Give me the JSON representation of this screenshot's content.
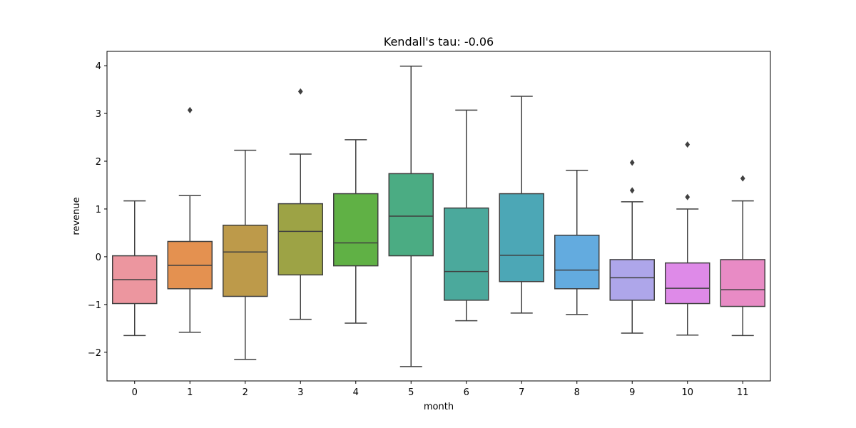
{
  "chart_data": {
    "type": "box",
    "title": "Kendall's tau: -0.06",
    "xlabel": "month",
    "ylabel": "revenue",
    "ylim": [
      -2.6,
      4.3
    ],
    "yticks": [
      -2,
      -1,
      0,
      1,
      2,
      3,
      4
    ],
    "ytick_labels": [
      "−2",
      "−1",
      "0",
      "1",
      "2",
      "3",
      "4"
    ],
    "categories": [
      "0",
      "1",
      "2",
      "3",
      "4",
      "5",
      "6",
      "7",
      "8",
      "9",
      "10",
      "11"
    ],
    "boxes": [
      {
        "category": "0",
        "color": "#ec969f",
        "whisker_low": -1.65,
        "q1": -0.98,
        "median": -0.48,
        "q3": 0.02,
        "whisker_high": 1.17,
        "outliers": []
      },
      {
        "category": "1",
        "color": "#e49150",
        "whisker_low": -1.58,
        "q1": -0.67,
        "median": -0.18,
        "q3": 0.32,
        "whisker_high": 1.28,
        "outliers": [
          3.07
        ]
      },
      {
        "category": "2",
        "color": "#bd9a4a",
        "whisker_low": -2.15,
        "q1": -0.83,
        "median": 0.1,
        "q3": 0.66,
        "whisker_high": 2.23,
        "outliers": []
      },
      {
        "category": "3",
        "color": "#9da345",
        "whisker_low": -1.31,
        "q1": -0.38,
        "median": 0.53,
        "q3": 1.11,
        "whisker_high": 2.15,
        "outliers": [
          3.46
        ]
      },
      {
        "category": "4",
        "color": "#60b145",
        "whisker_low": -1.39,
        "q1": -0.19,
        "median": 0.29,
        "q3": 1.32,
        "whisker_high": 2.45,
        "outliers": []
      },
      {
        "category": "5",
        "color": "#4bac83",
        "whisker_low": -2.3,
        "q1": 0.02,
        "median": 0.85,
        "q3": 1.74,
        "whisker_high": 3.99,
        "outliers": []
      },
      {
        "category": "6",
        "color": "#4ba99c",
        "whisker_low": -1.34,
        "q1": -0.91,
        "median": -0.31,
        "q3": 1.02,
        "whisker_high": 3.07,
        "outliers": []
      },
      {
        "category": "7",
        "color": "#4ca7b6",
        "whisker_low": -1.18,
        "q1": -0.52,
        "median": 0.03,
        "q3": 1.32,
        "whisker_high": 3.36,
        "outliers": []
      },
      {
        "category": "8",
        "color": "#63abdf",
        "whisker_low": -1.21,
        "q1": -0.67,
        "median": -0.28,
        "q3": 0.45,
        "whisker_high": 1.81,
        "outliers": []
      },
      {
        "category": "9",
        "color": "#aea6ea",
        "whisker_low": -1.6,
        "q1": -0.91,
        "median": -0.44,
        "q3": -0.06,
        "whisker_high": 1.15,
        "outliers": [
          1.39,
          1.97
        ]
      },
      {
        "category": "10",
        "color": "#de8ae8",
        "whisker_low": -1.64,
        "q1": -0.98,
        "median": -0.66,
        "q3": -0.13,
        "whisker_high": 1.0,
        "outliers": [
          1.25,
          2.35
        ]
      },
      {
        "category": "11",
        "color": "#e88bc5",
        "whisker_low": -1.65,
        "q1": -1.04,
        "median": -0.69,
        "q3": -0.06,
        "whisker_high": 1.17,
        "outliers": [
          1.64
        ]
      }
    ],
    "line_color": "#404040",
    "grid": false,
    "legend": "none"
  }
}
